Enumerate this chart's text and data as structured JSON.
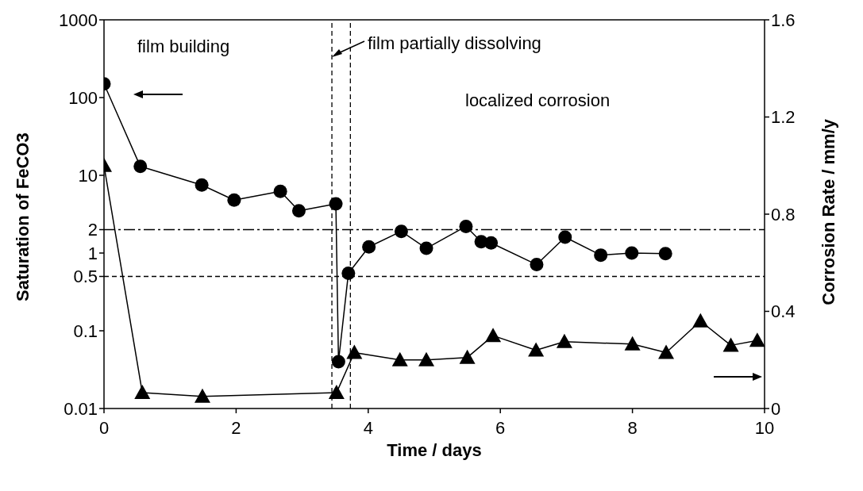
{
  "chart_data": {
    "type": "line",
    "xlabel": "Time / days",
    "ylabel": "Saturation of FeCO3",
    "y2label": "Corrosion Rate / mm/y",
    "xlim": [
      0,
      10
    ],
    "xticks": [
      0,
      2,
      4,
      6,
      8,
      10
    ],
    "ylim": [
      0.01,
      1000
    ],
    "yticks": [
      0.01,
      0.1,
      0.5,
      1,
      2,
      10,
      100,
      1000
    ],
    "log": "y",
    "y2lim": [
      0,
      1.6
    ],
    "y2ticks": [
      0,
      0.4,
      0.8,
      1.2,
      1.6
    ],
    "line_style": "solid",
    "series": [
      {
        "color": "#000000",
        "marker": "circle",
        "x": [
          0,
          0.55,
          1.48,
          1.97,
          2.67,
          2.95,
          3.51,
          3.55,
          3.7,
          4.01,
          4.5,
          4.88,
          5.48,
          5.71,
          5.86,
          6.55,
          6.98,
          7.52,
          7.99,
          8.5
        ],
        "values": [
          150,
          13,
          7.5,
          4.8,
          6.2,
          3.5,
          4.3,
          0.04,
          0.55,
          1.2,
          1.9,
          1.15,
          2.2,
          1.4,
          1.35,
          0.71,
          1.6,
          0.94,
          1.0,
          0.98
        ]
      },
      {
        "color": "#000000",
        "marker": "triangle",
        "axis": "y2",
        "x": [
          0,
          0.58,
          1.49,
          3.52,
          3.79,
          4.48,
          4.88,
          5.5,
          5.89,
          6.54,
          6.97,
          8.0,
          8.51,
          9.03,
          9.49,
          9.89
        ],
        "values": [
          1.0,
          0.065,
          0.05,
          0.065,
          0.23,
          0.2,
          0.2,
          0.21,
          0.3,
          0.24,
          0.275,
          0.265,
          0.23,
          0.36,
          0.26,
          0.28
        ]
      }
    ],
    "ref_lines": [
      {
        "axis": "y",
        "value": 2,
        "line_style": "dashdot",
        "color": "#000000"
      },
      {
        "axis": "y",
        "value": 0.5,
        "line_style": "dashed",
        "color": "#000000"
      },
      {
        "axis": "x",
        "value": 3.45,
        "line_style": "dashed",
        "color": "#000000"
      },
      {
        "axis": "x",
        "value": 3.73,
        "line_style": "dashed",
        "color": "#000000"
      }
    ],
    "annotations": [
      "film building",
      "film partially dissolving",
      "localized corrosion"
    ]
  }
}
